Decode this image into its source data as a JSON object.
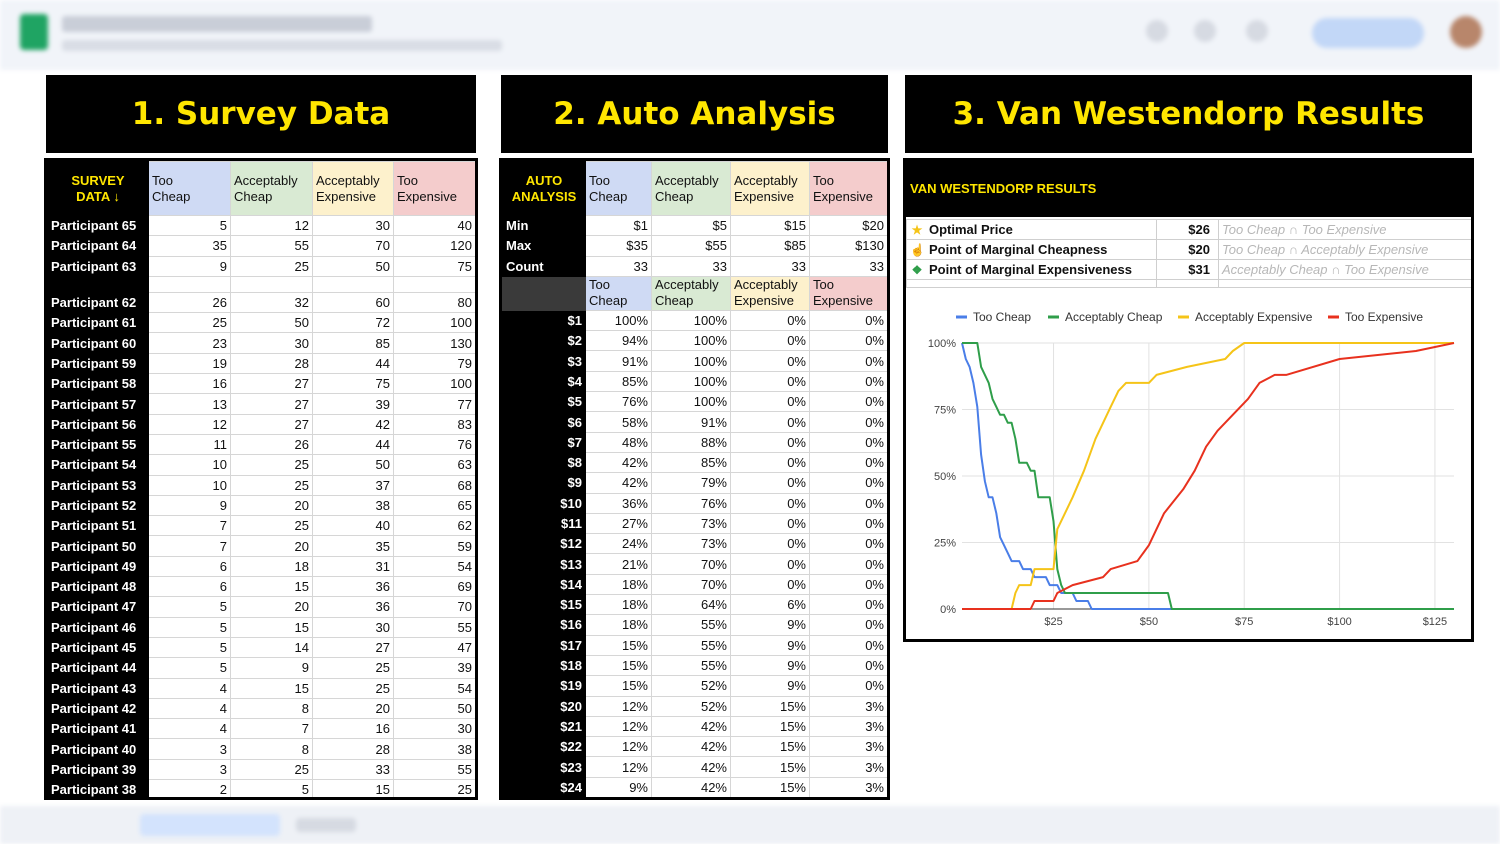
{
  "colors": {
    "header_bg": "#000000",
    "header_text": "#ffe600",
    "too_cheap": "#4a7ee8",
    "acceptably_cheap": "#2f9e4a",
    "acceptably_expensive": "#f5c418",
    "too_expensive": "#e8311e"
  },
  "panels": {
    "survey": {
      "heading": "1. Survey Data"
    },
    "analysis": {
      "heading": "2. Auto Analysis"
    },
    "results": {
      "heading": "3. Van Westendorp Results"
    }
  },
  "survey": {
    "corner_line1": "SURVEY",
    "corner_line2": "DATA ↓",
    "columns": [
      {
        "line1": "Too",
        "line2": "Cheap"
      },
      {
        "line1": "Acceptably",
        "line2": "Cheap"
      },
      {
        "line1": "Acceptably",
        "line2": "Expensive"
      },
      {
        "line1": "Too",
        "line2": "Expensive"
      }
    ],
    "rows": [
      {
        "label": "Participant 65",
        "values": [
          5,
          12,
          30,
          40
        ]
      },
      {
        "label": "Participant 64",
        "values": [
          35,
          55,
          70,
          120
        ]
      },
      {
        "label": "Participant 63",
        "values": [
          9,
          25,
          50,
          75
        ]
      },
      {
        "gap": true
      },
      {
        "label": "Participant 62",
        "values": [
          26,
          32,
          60,
          80
        ]
      },
      {
        "label": "Participant 61",
        "values": [
          25,
          50,
          72,
          100
        ]
      },
      {
        "label": "Participant 60",
        "values": [
          23,
          30,
          85,
          130
        ]
      },
      {
        "label": "Participant 59",
        "values": [
          19,
          28,
          44,
          79
        ]
      },
      {
        "label": "Participant 58",
        "values": [
          16,
          27,
          75,
          100
        ]
      },
      {
        "label": "Participant 57",
        "values": [
          13,
          27,
          39,
          77
        ]
      },
      {
        "label": "Participant 56",
        "values": [
          12,
          27,
          42,
          83
        ]
      },
      {
        "label": "Participant 55",
        "values": [
          11,
          26,
          44,
          76
        ]
      },
      {
        "label": "Participant 54",
        "values": [
          10,
          25,
          50,
          63
        ]
      },
      {
        "label": "Participant 53",
        "values": [
          10,
          25,
          37,
          68
        ]
      },
      {
        "label": "Participant 52",
        "values": [
          9,
          20,
          38,
          65
        ]
      },
      {
        "label": "Participant 51",
        "values": [
          7,
          25,
          40,
          62
        ]
      },
      {
        "label": "Participant 50",
        "values": [
          7,
          20,
          35,
          59
        ]
      },
      {
        "label": "Participant 49",
        "values": [
          6,
          18,
          31,
          54
        ]
      },
      {
        "label": "Participant 48",
        "values": [
          6,
          15,
          36,
          69
        ]
      },
      {
        "label": "Participant 47",
        "values": [
          5,
          20,
          36,
          70
        ]
      },
      {
        "label": "Participant 46",
        "values": [
          5,
          15,
          30,
          55
        ]
      },
      {
        "label": "Participant 45",
        "values": [
          5,
          14,
          27,
          47
        ]
      },
      {
        "label": "Participant 44",
        "values": [
          5,
          9,
          25,
          39
        ]
      },
      {
        "label": "Participant 43",
        "values": [
          4,
          15,
          25,
          54
        ]
      },
      {
        "label": "Participant 42",
        "values": [
          4,
          8,
          20,
          50
        ]
      },
      {
        "label": "Participant 41",
        "values": [
          4,
          7,
          16,
          30
        ]
      },
      {
        "label": "Participant 40",
        "values": [
          3,
          8,
          28,
          38
        ]
      },
      {
        "label": "Participant 39",
        "values": [
          3,
          25,
          33,
          55
        ]
      },
      {
        "label": "Participant 38",
        "values": [
          2,
          5,
          15,
          25
        ]
      }
    ]
  },
  "analysis": {
    "corner_line1": "AUTO",
    "corner_line2": "ANALYSIS",
    "columns": [
      {
        "line1": "Too",
        "line2": "Cheap"
      },
      {
        "line1": "Acceptably",
        "line2": "Cheap"
      },
      {
        "line1": "Acceptably",
        "line2": "Expensive"
      },
      {
        "line1": "Too",
        "line2": "Expensive"
      }
    ],
    "stats": [
      {
        "label": "Min",
        "values": [
          "$1",
          "$5",
          "$15",
          "$20"
        ]
      },
      {
        "label": "Max",
        "values": [
          "$35",
          "$55",
          "$85",
          "$130"
        ]
      },
      {
        "label": "Count",
        "values": [
          "33",
          "33",
          "33",
          "33"
        ]
      }
    ],
    "price_rows": [
      {
        "label": "$1",
        "values": [
          "100%",
          "100%",
          "0%",
          "0%"
        ]
      },
      {
        "label": "$2",
        "values": [
          "94%",
          "100%",
          "0%",
          "0%"
        ]
      },
      {
        "label": "$3",
        "values": [
          "91%",
          "100%",
          "0%",
          "0%"
        ]
      },
      {
        "label": "$4",
        "values": [
          "85%",
          "100%",
          "0%",
          "0%"
        ]
      },
      {
        "label": "$5",
        "values": [
          "76%",
          "100%",
          "0%",
          "0%"
        ]
      },
      {
        "label": "$6",
        "values": [
          "58%",
          "91%",
          "0%",
          "0%"
        ]
      },
      {
        "label": "$7",
        "values": [
          "48%",
          "88%",
          "0%",
          "0%"
        ]
      },
      {
        "label": "$8",
        "values": [
          "42%",
          "85%",
          "0%",
          "0%"
        ]
      },
      {
        "label": "$9",
        "values": [
          "42%",
          "79%",
          "0%",
          "0%"
        ]
      },
      {
        "label": "$10",
        "values": [
          "36%",
          "76%",
          "0%",
          "0%"
        ]
      },
      {
        "label": "$11",
        "values": [
          "27%",
          "73%",
          "0%",
          "0%"
        ]
      },
      {
        "label": "$12",
        "values": [
          "24%",
          "73%",
          "0%",
          "0%"
        ]
      },
      {
        "label": "$13",
        "values": [
          "21%",
          "70%",
          "0%",
          "0%"
        ]
      },
      {
        "label": "$14",
        "values": [
          "18%",
          "70%",
          "0%",
          "0%"
        ]
      },
      {
        "label": "$15",
        "values": [
          "18%",
          "64%",
          "6%",
          "0%"
        ]
      },
      {
        "label": "$16",
        "values": [
          "18%",
          "55%",
          "9%",
          "0%"
        ]
      },
      {
        "label": "$17",
        "values": [
          "15%",
          "55%",
          "9%",
          "0%"
        ]
      },
      {
        "label": "$18",
        "values": [
          "15%",
          "55%",
          "9%",
          "0%"
        ]
      },
      {
        "label": "$19",
        "values": [
          "15%",
          "52%",
          "9%",
          "0%"
        ]
      },
      {
        "label": "$20",
        "values": [
          "12%",
          "52%",
          "15%",
          "3%"
        ]
      },
      {
        "label": "$21",
        "values": [
          "12%",
          "42%",
          "15%",
          "3%"
        ]
      },
      {
        "label": "$22",
        "values": [
          "12%",
          "42%",
          "15%",
          "3%"
        ]
      },
      {
        "label": "$23",
        "values": [
          "12%",
          "42%",
          "15%",
          "3%"
        ]
      },
      {
        "label": "$24",
        "values": [
          "9%",
          "42%",
          "15%",
          "3%"
        ]
      }
    ]
  },
  "results": {
    "title": "VAN WESTENDORP RESULTS",
    "rows": [
      {
        "icon": "star-icon",
        "glyph": "★",
        "glyph_color": "#f5c418",
        "label": "Optimal Price",
        "value": "$26",
        "definition": "Too Cheap ∩ Too Expensive"
      },
      {
        "icon": "pointing-hand-icon",
        "glyph": "☝",
        "glyph_color": "#f0a800",
        "label": "Point of Marginal Cheapness",
        "value": "$20",
        "definition": "Too Cheap ∩ Acceptably Expensive"
      },
      {
        "icon": "money-icon",
        "glyph": "❖",
        "glyph_color": "#2f9e4a",
        "label": "Point of Marginal Expensiveness",
        "value": "$31",
        "definition": "Acceptably Cheap ∩ Too Expensive"
      }
    ]
  },
  "chart_data": {
    "type": "line",
    "title": "",
    "xlabel": "",
    "ylabel": "",
    "xlim": [
      1,
      130
    ],
    "ylim": [
      0,
      1
    ],
    "x_ticks": [
      {
        "v": 25,
        "label": "$25"
      },
      {
        "v": 50,
        "label": "$50"
      },
      {
        "v": 75,
        "label": "$75"
      },
      {
        "v": 100,
        "label": "$100"
      },
      {
        "v": 125,
        "label": "$125"
      }
    ],
    "y_ticks": [
      {
        "v": 0,
        "label": "0%"
      },
      {
        "v": 0.25,
        "label": "25%"
      },
      {
        "v": 0.5,
        "label": "50%"
      },
      {
        "v": 0.75,
        "label": "75%"
      },
      {
        "v": 1,
        "label": "100%"
      }
    ],
    "grid": true,
    "legend_position": "top",
    "series": [
      {
        "name": "Too Cheap",
        "color": "#4a7ee8",
        "points": [
          [
            1,
            1
          ],
          [
            2,
            0.94
          ],
          [
            3,
            0.91
          ],
          [
            4,
            0.85
          ],
          [
            5,
            0.76
          ],
          [
            6,
            0.58
          ],
          [
            7,
            0.48
          ],
          [
            8,
            0.42
          ],
          [
            9,
            0.42
          ],
          [
            10,
            0.36
          ],
          [
            11,
            0.27
          ],
          [
            12,
            0.24
          ],
          [
            13,
            0.21
          ],
          [
            14,
            0.18
          ],
          [
            16,
            0.18
          ],
          [
            17,
            0.15
          ],
          [
            19,
            0.15
          ],
          [
            20,
            0.12
          ],
          [
            23,
            0.12
          ],
          [
            24,
            0.09
          ],
          [
            26,
            0.09
          ],
          [
            27,
            0.06
          ],
          [
            30,
            0.06
          ],
          [
            31,
            0.03
          ],
          [
            34,
            0.03
          ],
          [
            35,
            0
          ],
          [
            130,
            0
          ]
        ]
      },
      {
        "name": "Acceptably Cheap",
        "color": "#2f9e4a",
        "points": [
          [
            1,
            1
          ],
          [
            5,
            1
          ],
          [
            6,
            0.91
          ],
          [
            7,
            0.88
          ],
          [
            8,
            0.85
          ],
          [
            9,
            0.79
          ],
          [
            10,
            0.76
          ],
          [
            11,
            0.73
          ],
          [
            12,
            0.73
          ],
          [
            13,
            0.7
          ],
          [
            14,
            0.7
          ],
          [
            15,
            0.64
          ],
          [
            16,
            0.55
          ],
          [
            18,
            0.55
          ],
          [
            19,
            0.52
          ],
          [
            20,
            0.52
          ],
          [
            21,
            0.42
          ],
          [
            24,
            0.42
          ],
          [
            25,
            0.33
          ],
          [
            26,
            0.15
          ],
          [
            27,
            0.09
          ],
          [
            28,
            0.06
          ],
          [
            55,
            0.06
          ],
          [
            56,
            0
          ],
          [
            130,
            0
          ]
        ]
      },
      {
        "name": "Acceptably Expensive",
        "color": "#f5c418",
        "points": [
          [
            1,
            0
          ],
          [
            14,
            0
          ],
          [
            15,
            0.06
          ],
          [
            16,
            0.09
          ],
          [
            19,
            0.09
          ],
          [
            20,
            0.15
          ],
          [
            25,
            0.15
          ],
          [
            26,
            0.3
          ],
          [
            28,
            0.36
          ],
          [
            30,
            0.42
          ],
          [
            33,
            0.52
          ],
          [
            36,
            0.64
          ],
          [
            38,
            0.7
          ],
          [
            40,
            0.76
          ],
          [
            42,
            0.82
          ],
          [
            44,
            0.85
          ],
          [
            50,
            0.85
          ],
          [
            52,
            0.88
          ],
          [
            60,
            0.91
          ],
          [
            70,
            0.94
          ],
          [
            72,
            0.97
          ],
          [
            75,
            1
          ],
          [
            130,
            1
          ]
        ]
      },
      {
        "name": "Too Expensive",
        "color": "#e8311e",
        "points": [
          [
            1,
            0
          ],
          [
            19,
            0
          ],
          [
            20,
            0.03
          ],
          [
            25,
            0.03
          ],
          [
            26,
            0.06
          ],
          [
            30,
            0.09
          ],
          [
            38,
            0.12
          ],
          [
            40,
            0.15
          ],
          [
            47,
            0.18
          ],
          [
            50,
            0.24
          ],
          [
            54,
            0.36
          ],
          [
            59,
            0.45
          ],
          [
            62,
            0.52
          ],
          [
            65,
            0.61
          ],
          [
            68,
            0.67
          ],
          [
            72,
            0.73
          ],
          [
            76,
            0.79
          ],
          [
            79,
            0.85
          ],
          [
            83,
            0.88
          ],
          [
            85,
            0.88
          ],
          [
            86,
            0.88
          ],
          [
            100,
            0.94
          ],
          [
            120,
            0.97
          ],
          [
            130,
            1
          ]
        ]
      }
    ]
  }
}
